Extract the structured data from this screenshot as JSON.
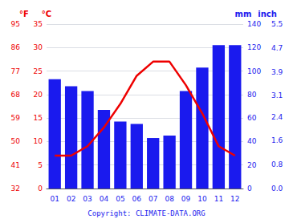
{
  "chart_data": {
    "type": "bar",
    "categories": [
      "01",
      "02",
      "03",
      "04",
      "05",
      "06",
      "07",
      "08",
      "09",
      "10",
      "11",
      "12"
    ],
    "series": [
      {
        "type": "bar",
        "color": "#1a1aee",
        "values": [
          93,
          87,
          83,
          67,
          57,
          55,
          43,
          45,
          83,
          103,
          122,
          122
        ]
      },
      {
        "type": "line",
        "axis": "y2",
        "color": "#ee0000",
        "values": [
          7,
          7,
          9,
          13,
          18,
          24,
          27,
          27,
          22,
          16,
          9,
          7
        ]
      }
    ],
    "ylabel": "mm",
    "ylim": [
      0,
      140
    ],
    "yticks": [
      0,
      20,
      40,
      60,
      80,
      100,
      120,
      140
    ],
    "y2label": "°C",
    "y2lim": [
      0,
      35
    ],
    "y2ticks": [
      0,
      5,
      10,
      15,
      20,
      25,
      30,
      35
    ],
    "y3label": "°F",
    "y3lim": [
      32,
      95
    ],
    "y3ticks": [
      32,
      41,
      50,
      59,
      68,
      77,
      86,
      95
    ],
    "y4label": "inch",
    "y4lim": [
      0,
      5.5
    ],
    "y4ticks": [
      {
        "value": 0.0,
        "label": "0.0"
      },
      0.8,
      1.6,
      2.4,
      3.1,
      3.9,
      4.7,
      5.5
    ],
    "annotations": [
      "Copyright: CLIMATE-DATA.ORG"
    ],
    "grid": true
  }
}
